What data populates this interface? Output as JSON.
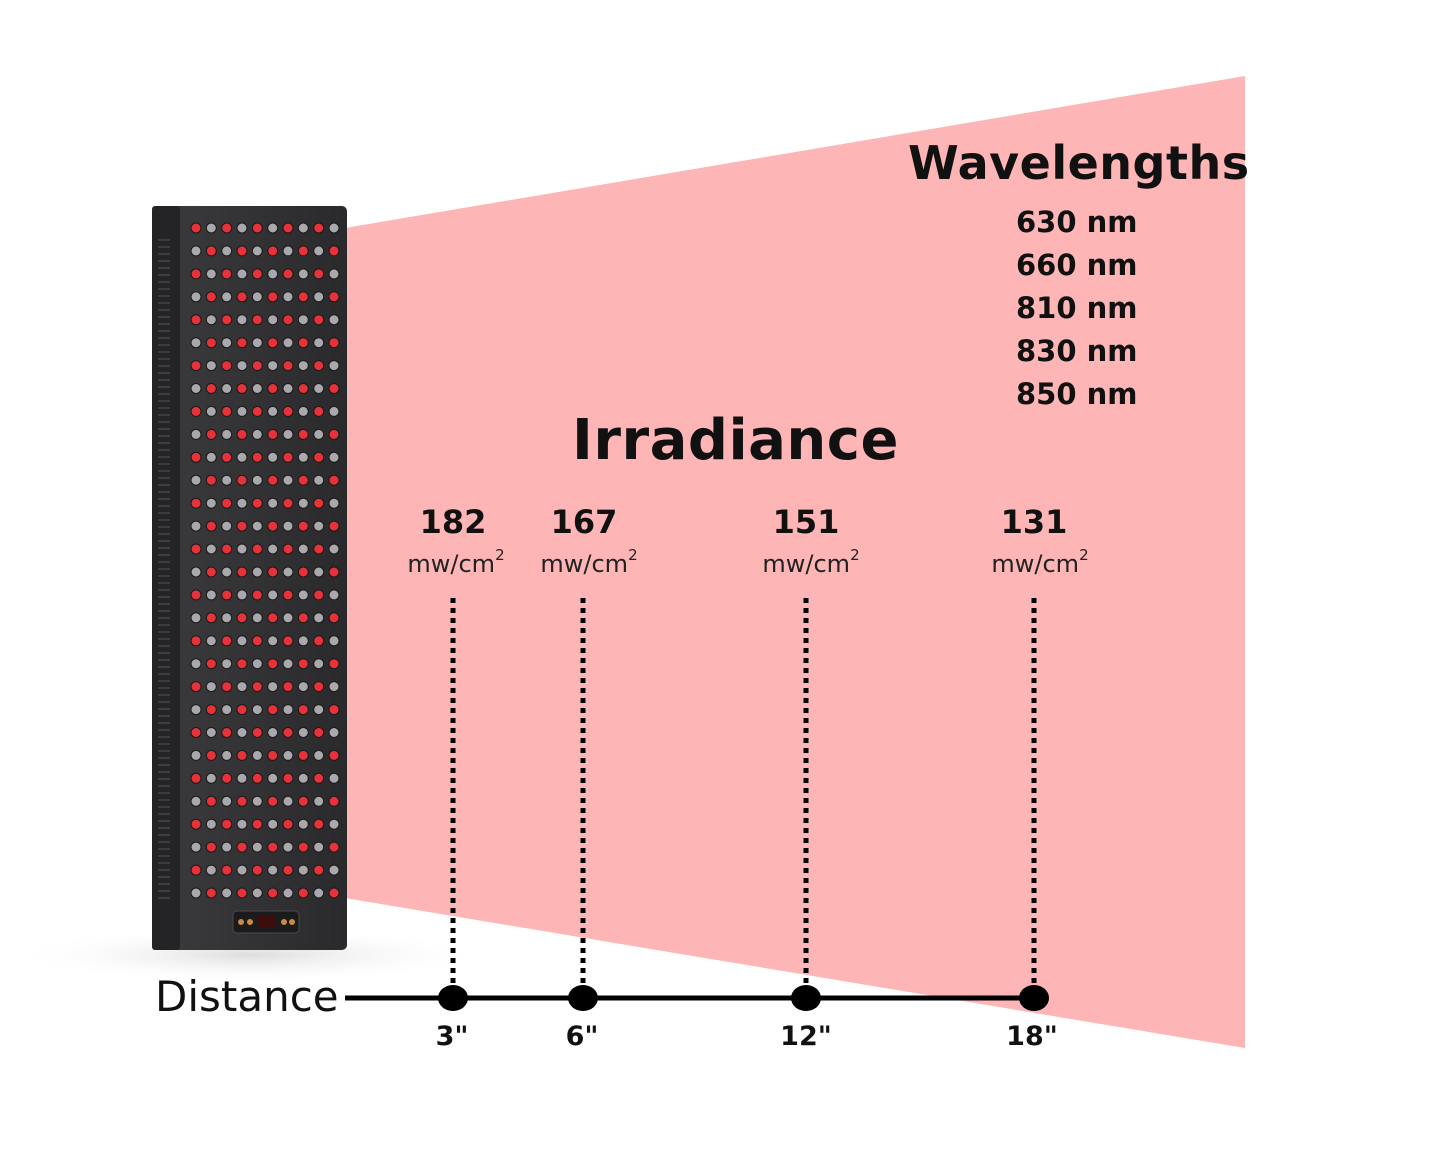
{
  "wavelengths": {
    "title": "Wavelengths",
    "items": [
      "630 nm",
      "660 nm",
      "810 nm",
      "830 nm",
      "850 nm"
    ]
  },
  "irradiance": {
    "title": "Irradiance",
    "unit_base": "mw/cm",
    "unit_exp": "2",
    "values": [
      "182",
      "167",
      "151",
      "131"
    ]
  },
  "distance": {
    "label": "Distance",
    "values": [
      "3\"",
      "6\"",
      "12\"",
      "18\""
    ]
  },
  "colors": {
    "beam": "#fdb5b5",
    "panel_body": "#2e2e30",
    "led_red": "#e8323a",
    "led_gray": "#a9a9ad",
    "axis": "#000000"
  }
}
